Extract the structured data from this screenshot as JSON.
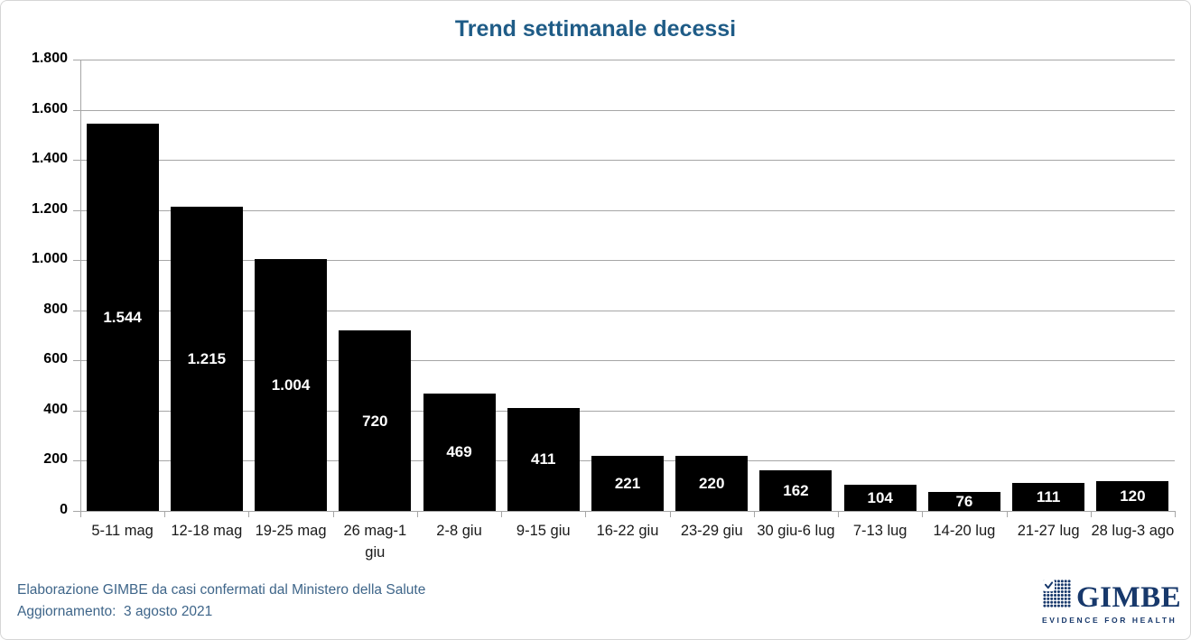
{
  "title": "Trend settimanale decessi",
  "chart_data": {
    "type": "bar",
    "title": "Trend settimanale decessi",
    "categories": [
      "5-11 mag",
      "12-18 mag",
      "19-25 mag",
      "26 mag-1 giu",
      "2-8 giu",
      "9-15 giu",
      "16-22 giu",
      "23-29 giu",
      "30 giu-6 lug",
      "7-13 lug",
      "14-20 lug",
      "21-27 lug",
      "28 lug-3 ago"
    ],
    "values": [
      1544,
      1215,
      1004,
      720,
      469,
      411,
      221,
      220,
      162,
      104,
      76,
      111,
      120
    ],
    "value_labels": [
      "1.544",
      "1.215",
      "1.004",
      "720",
      "469",
      "411",
      "221",
      "220",
      "162",
      "104",
      "76",
      "111",
      "120"
    ],
    "xlabel": "",
    "ylabel": "",
    "ylim": [
      0,
      1800
    ],
    "ytick_interval": 200,
    "ytick_values": [
      0,
      200,
      400,
      600,
      800,
      1000,
      1200,
      1400,
      1600,
      1800
    ],
    "ytick_labels": [
      "0",
      "200",
      "400",
      "600",
      "800",
      "1.000",
      "1.200",
      "1.400",
      "1.600",
      "1.800"
    ],
    "grid": true,
    "legend": "none",
    "bar_color": "#000000",
    "value_label_color": "#ffffff"
  },
  "footer": {
    "line1": "Elaborazione GIMBE da casi confermati dal Ministero della Salute",
    "line2": "Aggiornamento:  3 agosto 2021"
  },
  "logo": {
    "wordmark": "GIMBE",
    "tagline": "EVIDENCE FOR HEALTH"
  },
  "colors": {
    "title_text": "#1f5c87",
    "footer_text": "#3e6589",
    "logo_navy": "#17386b",
    "gridline": "#a6a6a6",
    "axis": "#a6a6a6",
    "bar": "#000000",
    "bar_label": "#ffffff"
  }
}
